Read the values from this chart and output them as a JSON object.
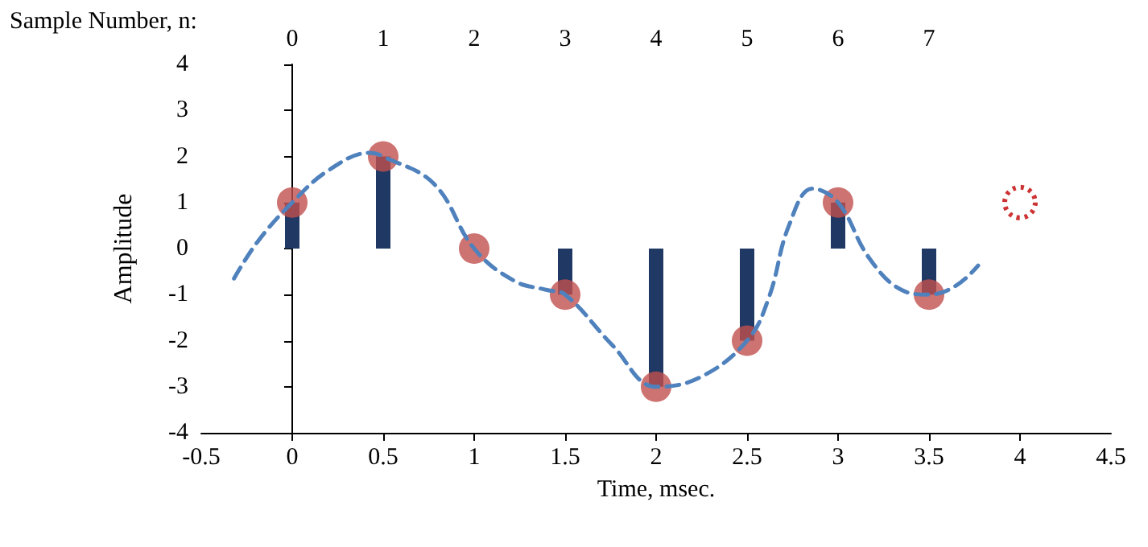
{
  "chart_data": {
    "type": "bar",
    "xlabel": "Time, msec.",
    "ylabel": "Amplitude",
    "x2label": "Sample Number, n:",
    "xlim": [
      -0.5,
      4.5
    ],
    "xticks": [
      -0.5,
      0,
      0.5,
      1,
      1.5,
      2,
      2.5,
      3,
      3.5,
      4,
      4.5
    ],
    "x2lim": [
      -1,
      9
    ],
    "x2ticks": [
      0,
      1,
      2,
      3,
      4,
      5,
      6,
      7
    ],
    "ylim": [
      -4,
      4
    ],
    "yticks": [
      -4,
      -3,
      -2,
      -1,
      0,
      1,
      2,
      3,
      4
    ],
    "x": [
      0,
      0.5,
      1,
      1.5,
      2,
      2.5,
      3,
      3.5
    ],
    "series": [
      {
        "type": "line",
        "color": "#4f81bd",
        "line_style": "dashed",
        "marker": "none",
        "x": [
          -0.32,
          -0.19,
          0,
          0.2,
          0.43,
          0.5,
          0.78,
          1,
          1.22,
          1.4,
          1.5,
          1.76,
          2,
          2.24,
          2.5,
          2.62,
          2.73,
          2.86,
          3,
          3.17,
          3.35,
          3.5,
          3.65,
          3.77
        ],
        "values": [
          -0.65,
          0.15,
          1,
          1.7,
          2.08,
          2,
          1.4,
          0,
          -0.7,
          -0.9,
          -1,
          -2.1,
          -3,
          -2.8,
          -2,
          -1.06,
          0.5,
          1.3,
          1,
          -0.2,
          -0.9,
          -1,
          -0.8,
          -0.37
        ]
      },
      {
        "color": "#1f3864",
        "values": [
          1,
          2,
          0,
          -1,
          -3,
          -2,
          1,
          -1
        ]
      },
      {
        "type": "scatter",
        "color": "#c0504d",
        "marker": "circle",
        "values": [
          1,
          2,
          0,
          -1,
          -3,
          -2,
          1,
          -1
        ]
      },
      {
        "type": "scatter",
        "color": "#c00000",
        "marker": "circle",
        "line_style": "dotted",
        "x": [
          4
        ],
        "values": [
          1
        ]
      }
    ]
  }
}
